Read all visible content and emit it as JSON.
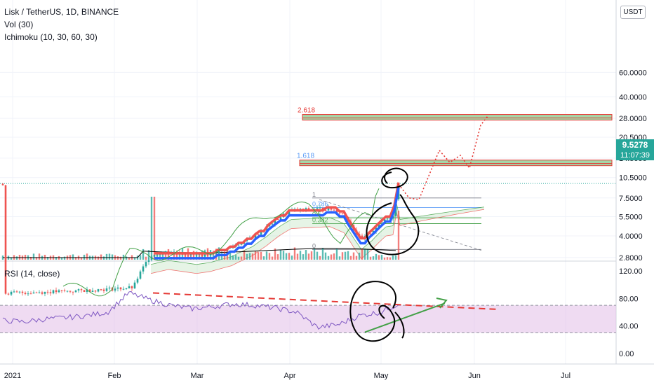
{
  "header": {
    "symbol_title": "Lisk / TetherUS, 1D, BINANCE",
    "volume_label": "Vol (30)",
    "ichimoku_label": "Ichimoku (10, 30, 60, 30)",
    "rsi_label": "RSI (14, close)",
    "currency_button": "USDT"
  },
  "price_tag": {
    "price": "9.5278",
    "countdown": "11:07:39",
    "color": "#26a69a"
  },
  "colors": {
    "up": "#26a69a",
    "down": "#ef5350",
    "conversion": "#2962ff",
    "base": "#ef5350",
    "lagging": "#43a047",
    "rsi": "#7e57c2",
    "rsi_band": "#e1bee7",
    "fib_zone": "#a5d6a7",
    "drawing": "#e53935",
    "ink": "#000000",
    "projection": "#e53935"
  },
  "chart_data": [
    {
      "type": "candlestick",
      "title": "Lisk / TetherUS, 1D, BINANCE",
      "scale": "log",
      "y_ticks": [
        "60.0000",
        "40.0000",
        "28.0000",
        "20.5000",
        "14.5000",
        "10.5000",
        "7.5000",
        "5.5000",
        "4.0000",
        "2.8000"
      ],
      "x_ticks": [
        "2021",
        "Feb",
        "Mar",
        "Apr",
        "May",
        "Jun",
        "Jul"
      ],
      "last_price": 9.5278,
      "series": [
        {
          "name": "price",
          "values_summary": {
            "jan": 1.6,
            "feb_end": 3.0,
            "mar_end": 5.0,
            "apr_mid": 6.3,
            "apr_end": 4.1,
            "may_peak": 9.5
          }
        },
        {
          "name": "Conversion line",
          "values": [
            2.9,
            3.2,
            4.0,
            5.5,
            5.8,
            6.0
          ]
        },
        {
          "name": "Base line",
          "values": [
            3.2,
            3.6,
            4.5,
            5.9,
            5.2,
            5.9
          ]
        }
      ],
      "fib_levels": [
        {
          "label": "2.618",
          "price": 28.5
        },
        {
          "label": "1.618",
          "price": 13.4
        },
        {
          "label": "1",
          "price": 7.5
        },
        {
          "label": "0.786",
          "price": 6.4
        },
        {
          "label": "0.5",
          "price": 5.4
        },
        {
          "label": "0.382",
          "price": 4.9
        },
        {
          "label": "0",
          "price": 3.2
        }
      ],
      "annotations": [
        "8"
      ]
    },
    {
      "type": "line",
      "title": "RSI (14, close)",
      "ylim": [
        0,
        120
      ],
      "y_ticks": [
        "120.00",
        "80.00",
        "40.00",
        "0.00"
      ],
      "band": [
        30,
        70
      ],
      "series": [
        {
          "name": "RSI",
          "values": [
            48,
            46,
            50,
            52,
            55,
            60,
            88,
            78,
            70,
            65,
            68,
            72,
            70,
            66,
            60,
            38,
            42,
            55,
            60,
            74
          ]
        }
      ],
      "annotations": [
        "9"
      ]
    }
  ]
}
